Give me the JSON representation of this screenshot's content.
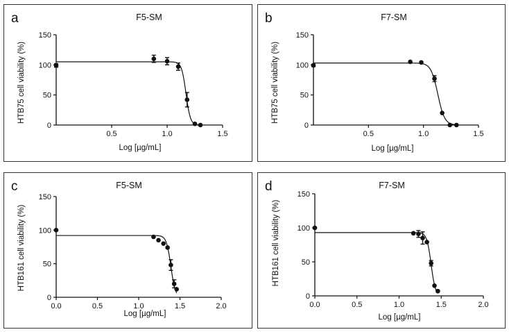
{
  "chart_data": [
    {
      "letter": "a",
      "type": "scatter",
      "title": "F5-SM",
      "xlabel": "Log [µg/mL]",
      "ylabel": "HTB75 cell viability (%)",
      "xlim": [
        0,
        1.5
      ],
      "ylim": [
        0,
        150
      ],
      "xticks": [
        "0.5",
        "1.0",
        "1.5"
      ],
      "xtick_values": [
        0.5,
        1.0,
        1.5
      ],
      "yticks": [
        "0",
        "50",
        "100",
        "150"
      ],
      "ytick_values": [
        0,
        50,
        100,
        150
      ],
      "points": [
        {
          "x": 0.0,
          "y": 99,
          "err": 3
        },
        {
          "x": 0.88,
          "y": 110,
          "err": 6
        },
        {
          "x": 1.0,
          "y": 106,
          "err": 6
        },
        {
          "x": 1.1,
          "y": 97,
          "err": 6
        },
        {
          "x": 1.18,
          "y": 42,
          "err": 12
        },
        {
          "x": 1.25,
          "y": 2,
          "err": 0
        },
        {
          "x": 1.3,
          "y": 0,
          "err": 0
        }
      ],
      "curve": {
        "top": 105,
        "bottom": 0,
        "logEC50": 1.17,
        "hill": 22
      }
    },
    {
      "letter": "b",
      "type": "scatter",
      "title": "F7-SM",
      "xlabel": "Log [µg/mL]",
      "ylabel": "HTB75 cell viability (%)",
      "xlim": [
        0,
        1.5
      ],
      "ylim": [
        0,
        150
      ],
      "xticks": [
        "0.5",
        "1.0",
        "1.5"
      ],
      "xtick_values": [
        0.5,
        1.0,
        1.5
      ],
      "yticks": [
        "0",
        "50",
        "100",
        "150"
      ],
      "ytick_values": [
        0,
        50,
        100,
        150
      ],
      "points": [
        {
          "x": 0.0,
          "y": 99,
          "err": 2
        },
        {
          "x": 0.88,
          "y": 105,
          "err": 0
        },
        {
          "x": 0.98,
          "y": 104,
          "err": 0
        },
        {
          "x": 1.1,
          "y": 77,
          "err": 5
        },
        {
          "x": 1.17,
          "y": 20,
          "err": 0
        },
        {
          "x": 1.24,
          "y": 0,
          "err": 0
        },
        {
          "x": 1.3,
          "y": 0,
          "err": 0
        }
      ],
      "curve": {
        "top": 103,
        "bottom": 0,
        "logEC50": 1.13,
        "hill": 14
      }
    },
    {
      "letter": "c",
      "type": "scatter",
      "title": "F5-SM",
      "xlabel": "Log [µg/mL]",
      "ylabel": "HTB161 cell viability (%)",
      "xlim": [
        0,
        2.0
      ],
      "ylim": [
        0,
        150
      ],
      "xticks": [
        "0.0",
        "0.5",
        "1.0",
        "1.5",
        "2.0"
      ],
      "xtick_values": [
        0,
        0.5,
        1.0,
        1.5,
        2.0
      ],
      "yticks": [
        "0",
        "50",
        "100",
        "150"
      ],
      "ytick_values": [
        0,
        50,
        100,
        150
      ],
      "points": [
        {
          "x": 0.0,
          "y": 100,
          "err": 0
        },
        {
          "x": 1.18,
          "y": 90,
          "err": 0
        },
        {
          "x": 1.24,
          "y": 85,
          "err": 0
        },
        {
          "x": 1.3,
          "y": 80,
          "err": 0
        },
        {
          "x": 1.35,
          "y": 74,
          "err": 0
        },
        {
          "x": 1.39,
          "y": 48,
          "err": 8
        },
        {
          "x": 1.43,
          "y": 20,
          "err": 6
        },
        {
          "x": 1.46,
          "y": 12,
          "err": 0
        }
      ],
      "curve": {
        "top": 92,
        "bottom": 0,
        "logEC50": 1.39,
        "hill": 16
      }
    },
    {
      "letter": "d",
      "type": "scatter",
      "title": "F7-SM",
      "xlabel": "Log [µg/mL]",
      "ylabel": "HTB161 cell viability (%)",
      "xlim": [
        0,
        2.0
      ],
      "ylim": [
        0,
        150
      ],
      "xticks": [
        "0.0",
        "0.5",
        "1.0",
        "1.5",
        "2.0"
      ],
      "xtick_values": [
        0,
        0.5,
        1.0,
        1.5,
        2.0
      ],
      "yticks": [
        "0",
        "50",
        "100",
        "150"
      ],
      "ytick_values": [
        0,
        50,
        100,
        150
      ],
      "points": [
        {
          "x": 0.0,
          "y": 100,
          "err": 0
        },
        {
          "x": 1.17,
          "y": 92,
          "err": 0
        },
        {
          "x": 1.23,
          "y": 91,
          "err": 5
        },
        {
          "x": 1.28,
          "y": 85,
          "err": 9
        },
        {
          "x": 1.33,
          "y": 79,
          "err": 0
        },
        {
          "x": 1.38,
          "y": 48,
          "err": 4
        },
        {
          "x": 1.42,
          "y": 15,
          "err": 0
        },
        {
          "x": 1.46,
          "y": 7,
          "err": 0
        }
      ],
      "curve": {
        "top": 93,
        "bottom": 0,
        "logEC50": 1.38,
        "hill": 17
      }
    }
  ]
}
